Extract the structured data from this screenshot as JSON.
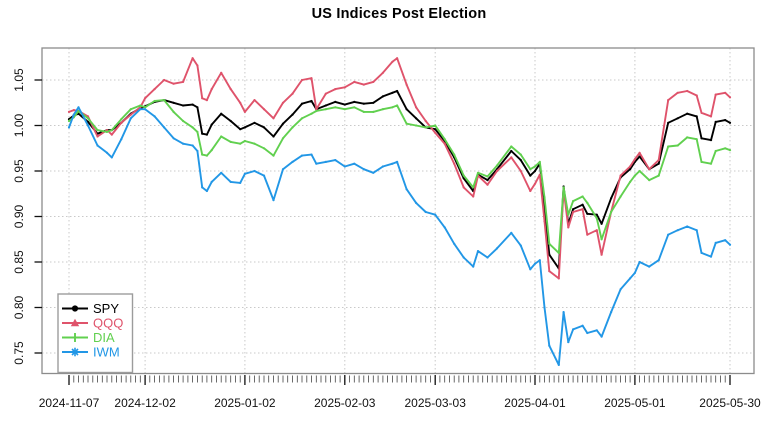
{
  "chart_data": {
    "type": "line",
    "title": "US Indices Post Election",
    "grid": "dotted",
    "x_axis": {
      "tick_labels": [
        "2024-11-07",
        "2024-12-02",
        "2025-01-02",
        "2025-02-03",
        "2025-03-03",
        "2025-04-01",
        "2025-05-01",
        "2025-05-30"
      ],
      "tick_day_index": [
        0,
        16,
        37,
        58,
        77,
        98,
        119,
        139
      ],
      "total_days": 139,
      "minor_ticks": "every trading day"
    },
    "y_axis": {
      "tick_labels": [
        "0.75",
        "0.80",
        "0.85",
        "0.90",
        "0.95",
        "1.00",
        "1.05"
      ],
      "tick_values": [
        0.75,
        0.8,
        0.85,
        0.9,
        0.95,
        1.0,
        1.05
      ],
      "ylim": [
        0.7275,
        1.0852
      ]
    },
    "legend": {
      "position": "bottom-left"
    },
    "x_day_index": [
      0,
      1,
      2,
      4,
      6,
      8,
      9,
      11,
      13,
      15,
      16,
      18,
      20,
      22,
      24,
      26,
      27,
      28,
      29,
      30,
      32,
      34,
      36,
      37,
      39,
      41,
      43,
      45,
      47,
      49,
      51,
      52,
      54,
      56,
      58,
      60,
      62,
      64,
      66,
      68,
      69,
      71,
      73,
      75,
      77,
      79,
      81,
      83,
      85,
      86,
      88,
      90,
      93,
      95,
      97,
      98,
      99,
      100,
      101,
      103,
      104,
      105,
      106,
      108,
      109,
      111,
      112,
      114,
      116,
      118,
      119,
      120,
      122,
      124,
      126,
      128,
      130,
      132,
      133,
      135,
      136,
      138,
      139
    ],
    "series": [
      {
        "name": "SPY",
        "color": "#000000",
        "marker": "circle",
        "values": [
          1.007,
          1.011,
          1.013,
          1.004,
          0.991,
          0.995,
          0.995,
          1.003,
          1.013,
          1.019,
          1.021,
          1.026,
          1.028,
          1.025,
          1.022,
          1.023,
          1.02,
          0.991,
          0.99,
          1.001,
          1.013,
          1.005,
          0.996,
          0.998,
          1.003,
          0.998,
          0.988,
          1.002,
          1.012,
          1.024,
          1.027,
          1.018,
          1.022,
          1.026,
          1.023,
          1.026,
          1.024,
          1.025,
          1.032,
          1.036,
          1.038,
          1.018,
          1.008,
          0.998,
          0.996,
          0.983,
          0.965,
          0.942,
          0.928,
          0.946,
          0.94,
          0.952,
          0.972,
          0.962,
          0.945,
          0.95,
          0.958,
          0.912,
          0.858,
          0.843,
          0.933,
          0.892,
          0.908,
          0.913,
          0.903,
          0.902,
          0.892,
          0.92,
          0.943,
          0.952,
          0.96,
          0.966,
          0.952,
          0.958,
          1.003,
          1.008,
          1.013,
          1.01,
          0.986,
          0.984,
          1.004,
          1.006,
          1.003
        ]
      },
      {
        "name": "QQQ",
        "color": "#DF536B",
        "marker": "triangle",
        "values": [
          1.015,
          1.017,
          1.016,
          1.01,
          0.988,
          0.995,
          0.99,
          1.003,
          1.012,
          1.02,
          1.03,
          1.04,
          1.05,
          1.046,
          1.048,
          1.074,
          1.066,
          1.03,
          1.028,
          1.04,
          1.058,
          1.04,
          1.025,
          1.015,
          1.028,
          1.018,
          1.008,
          1.025,
          1.035,
          1.05,
          1.052,
          1.018,
          1.035,
          1.04,
          1.042,
          1.048,
          1.045,
          1.048,
          1.058,
          1.07,
          1.074,
          1.045,
          1.02,
          1.005,
          0.992,
          0.98,
          0.958,
          0.932,
          0.922,
          0.945,
          0.935,
          0.95,
          0.965,
          0.95,
          0.928,
          0.936,
          0.946,
          0.895,
          0.84,
          0.832,
          0.93,
          0.888,
          0.905,
          0.908,
          0.88,
          0.885,
          0.858,
          0.905,
          0.945,
          0.955,
          0.963,
          0.97,
          0.952,
          0.962,
          1.028,
          1.036,
          1.038,
          1.033,
          1.014,
          1.01,
          1.034,
          1.036,
          1.031
        ]
      },
      {
        "name": "DIA",
        "color": "#61D04F",
        "marker": "plus",
        "values": [
          1.005,
          1.009,
          1.016,
          1.008,
          0.995,
          0.993,
          0.995,
          1.007,
          1.018,
          1.022,
          1.02,
          1.027,
          1.028,
          1.015,
          1.005,
          0.998,
          0.993,
          0.968,
          0.967,
          0.973,
          0.988,
          0.982,
          0.98,
          0.983,
          0.98,
          0.975,
          0.967,
          0.986,
          0.998,
          1.008,
          1.013,
          1.016,
          1.018,
          1.02,
          1.018,
          1.02,
          1.015,
          1.015,
          1.018,
          1.02,
          1.022,
          1.002,
          1.0,
          0.998,
          1.0,
          0.985,
          0.968,
          0.945,
          0.932,
          0.948,
          0.944,
          0.956,
          0.977,
          0.968,
          0.952,
          0.955,
          0.96,
          0.921,
          0.87,
          0.86,
          0.932,
          0.902,
          0.917,
          0.922,
          0.915,
          0.898,
          0.875,
          0.905,
          0.922,
          0.938,
          0.945,
          0.95,
          0.94,
          0.945,
          0.977,
          0.978,
          0.987,
          0.985,
          0.96,
          0.958,
          0.972,
          0.975,
          0.973
        ]
      },
      {
        "name": "IWM",
        "color": "#2297E6",
        "marker": "asterisk",
        "values": [
          0.998,
          1.012,
          1.02,
          1.0,
          0.978,
          0.97,
          0.965,
          0.985,
          1.008,
          1.018,
          1.018,
          1.01,
          0.998,
          0.986,
          0.98,
          0.978,
          0.972,
          0.932,
          0.928,
          0.938,
          0.948,
          0.938,
          0.937,
          0.947,
          0.95,
          0.945,
          0.918,
          0.952,
          0.96,
          0.967,
          0.968,
          0.958,
          0.96,
          0.962,
          0.955,
          0.958,
          0.952,
          0.948,
          0.955,
          0.958,
          0.96,
          0.93,
          0.915,
          0.905,
          0.902,
          0.888,
          0.87,
          0.855,
          0.845,
          0.862,
          0.855,
          0.865,
          0.882,
          0.868,
          0.842,
          0.848,
          0.852,
          0.8,
          0.758,
          0.737,
          0.795,
          0.762,
          0.776,
          0.78,
          0.772,
          0.775,
          0.768,
          0.795,
          0.82,
          0.832,
          0.838,
          0.85,
          0.845,
          0.852,
          0.88,
          0.885,
          0.889,
          0.885,
          0.86,
          0.856,
          0.871,
          0.874,
          0.869
        ]
      }
    ]
  }
}
